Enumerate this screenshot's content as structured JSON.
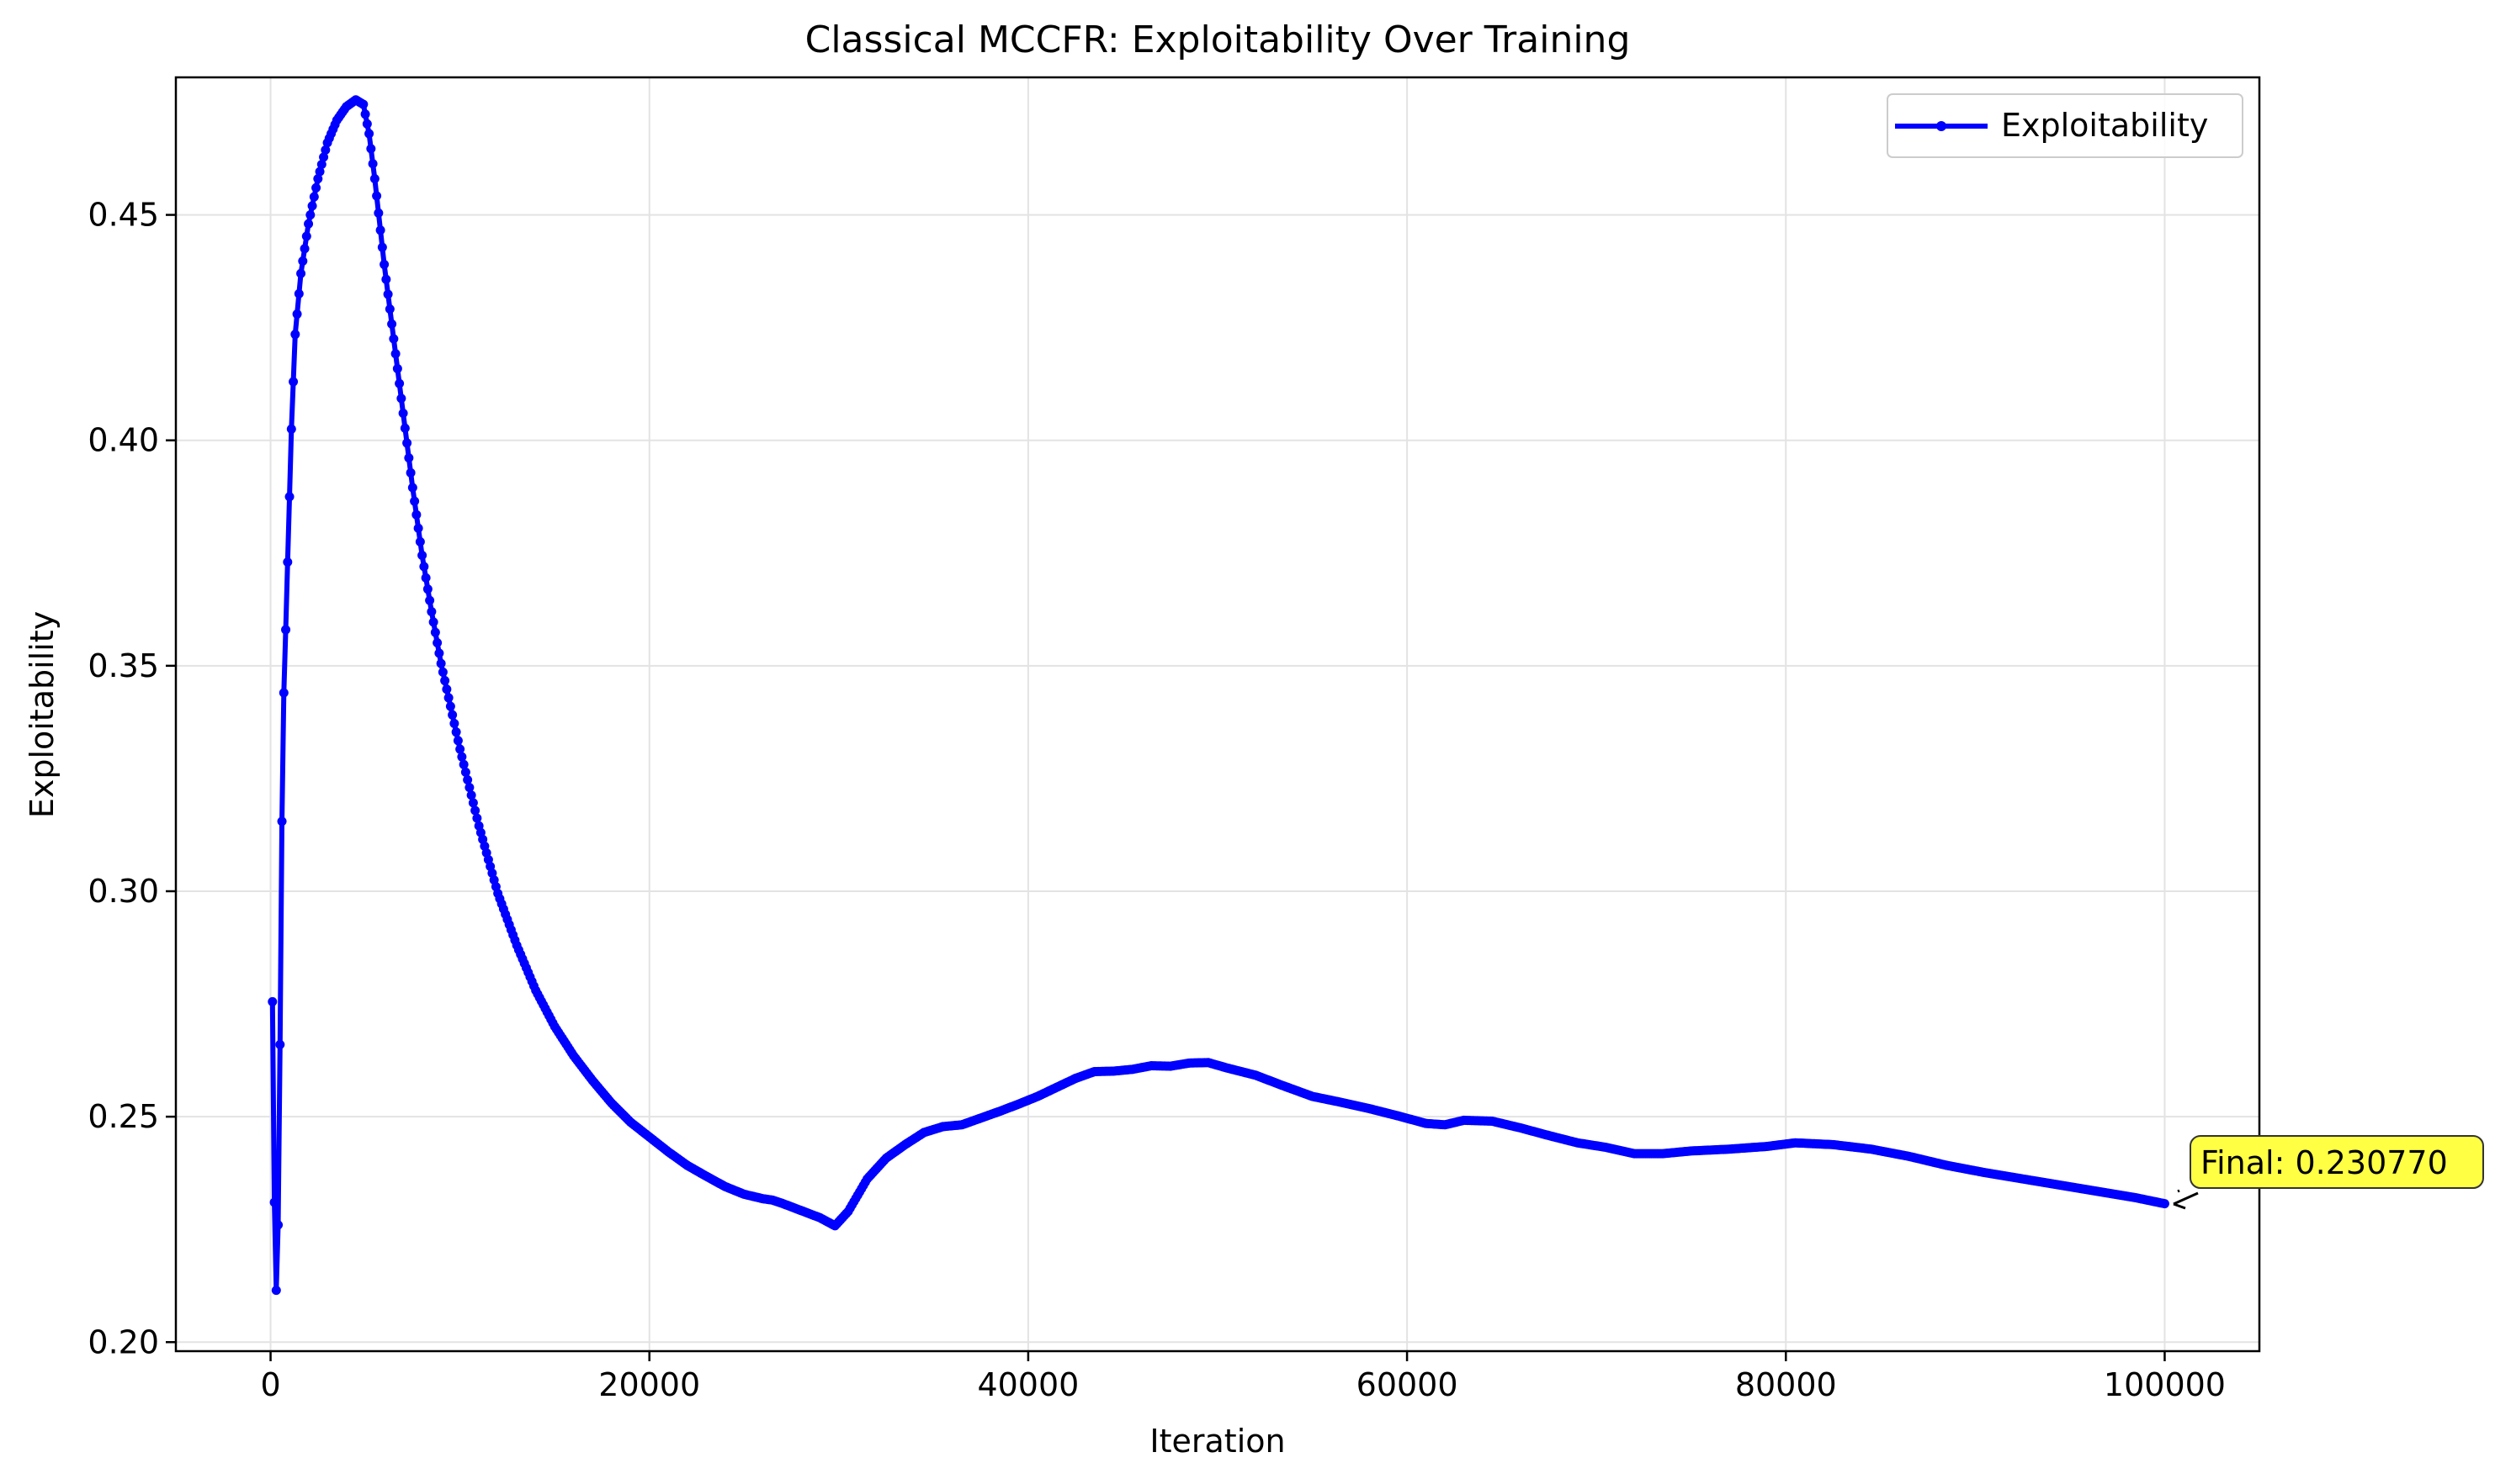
{
  "chart_data": {
    "type": "line",
    "title": "Classical MCCFR: Exploitability Over Training",
    "xlabel": "Iteration",
    "ylabel": "Exploitability",
    "xlim": [
      -5000,
      105000
    ],
    "ylim": [
      0.198,
      0.4805
    ],
    "xticks": [
      0,
      20000,
      40000,
      60000,
      80000,
      100000
    ],
    "xtick_labels": [
      "0",
      "20000",
      "40000",
      "60000",
      "80000",
      "100000"
    ],
    "yticks": [
      0.2,
      0.25,
      0.3,
      0.35,
      0.4,
      0.45
    ],
    "ytick_labels": [
      "0.20",
      "0.25",
      "0.30",
      "0.35",
      "0.40",
      "0.45"
    ],
    "grid": true,
    "legend_position": "top-right",
    "series": [
      {
        "name": "Exploitability",
        "color": "#0000ff",
        "marker": "circle",
        "keypoints": {
          "x": [
            100,
            200,
            300,
            400,
            500,
            600,
            700,
            800,
            900,
            1000,
            1100,
            1300,
            1600,
            2000,
            2500,
            3000,
            3500,
            4000,
            4500,
            4900,
            5200,
            5500,
            6000,
            6500,
            7000,
            7500,
            8000,
            8500,
            9000,
            10000,
            11000,
            12000,
            13000,
            14000,
            15000,
            16000,
            17000,
            18000,
            19000,
            20000,
            21000,
            22000,
            23000,
            24000,
            25000,
            26000,
            26500,
            27000,
            28000,
            29000,
            29800,
            30500,
            31500,
            32500,
            33500,
            34500,
            35500,
            36500,
            37500,
            38500,
            39500,
            40500,
            41500,
            42500,
            43500,
            44500,
            45500,
            46500,
            47500,
            48500,
            49500,
            50500,
            52000,
            53500,
            55000,
            56500,
            58000,
            59500,
            61000,
            62000,
            63000,
            64500,
            66000,
            67500,
            69000,
            70500,
            72000,
            73500,
            75000,
            77000,
            79000,
            80500,
            82500,
            84500,
            86500,
            88500,
            90500,
            92500,
            94500,
            96500,
            98500,
            100000
          ],
          "y": [
            0.2755,
            0.231,
            0.2115,
            0.226,
            0.266,
            0.3155,
            0.344,
            0.358,
            0.373,
            0.3875,
            0.4025,
            0.4235,
            0.437,
            0.448,
            0.458,
            0.466,
            0.471,
            0.474,
            0.4755,
            0.4745,
            0.468,
            0.458,
            0.439,
            0.4225,
            0.406,
            0.3895,
            0.3745,
            0.362,
            0.3505,
            0.3315,
            0.3145,
            0.2995,
            0.288,
            0.278,
            0.27,
            0.2635,
            0.258,
            0.253,
            0.2488,
            0.2455,
            0.2422,
            0.2392,
            0.2368,
            0.2345,
            0.2328,
            0.2318,
            0.2315,
            0.2308,
            0.2292,
            0.2276,
            0.2258,
            0.229,
            0.2362,
            0.2408,
            0.2438,
            0.2465,
            0.2478,
            0.2482,
            0.2497,
            0.2512,
            0.2528,
            0.2545,
            0.2565,
            0.2585,
            0.26,
            0.2601,
            0.2605,
            0.2613,
            0.2612,
            0.2619,
            0.262,
            0.2608,
            0.2592,
            0.2568,
            0.2545,
            0.2532,
            0.2518,
            0.2502,
            0.2485,
            0.2482,
            0.2492,
            0.249,
            0.2475,
            0.2458,
            0.2442,
            0.2432,
            0.2418,
            0.2418,
            0.2424,
            0.2428,
            0.2434,
            0.2442,
            0.2438,
            0.2428,
            0.2412,
            0.2392,
            0.2376,
            0.2362,
            0.2348,
            0.2334,
            0.232,
            0.2307
          ]
        }
      }
    ],
    "annotation": {
      "text": "Final: 0.230770",
      "x": 100000,
      "y": 0.23077,
      "box_color": "#ffff44"
    }
  }
}
